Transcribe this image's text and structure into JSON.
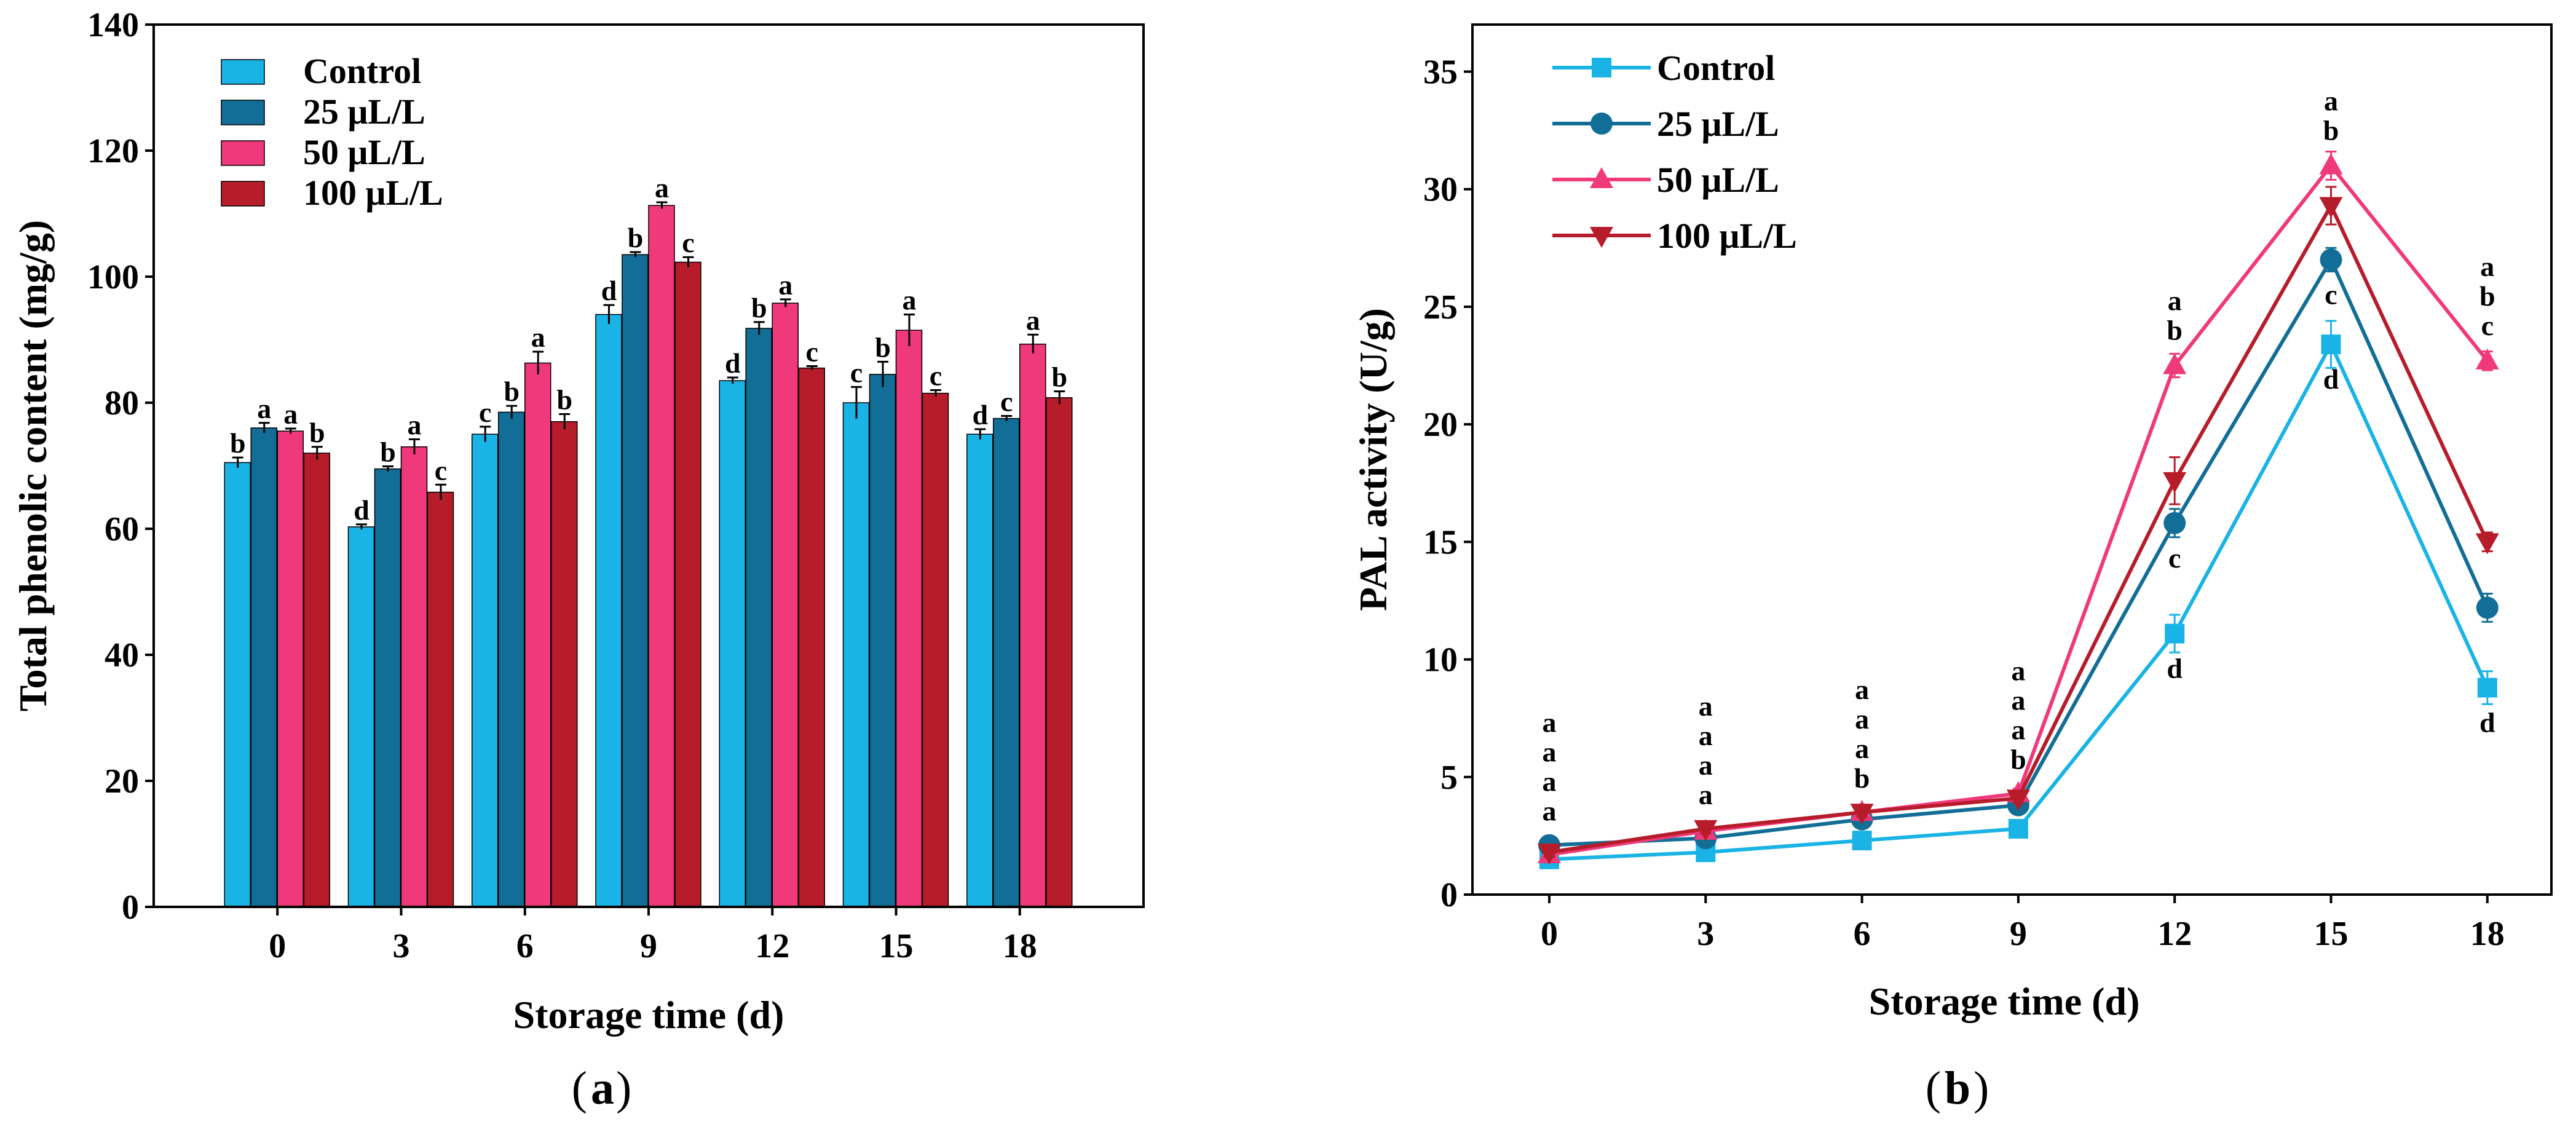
{
  "chart_data": [
    {
      "type": "bar",
      "panel_label": "a",
      "xlabel": "Storage time (d)",
      "ylabel": "Total phenolic content (mg/g)",
      "ylim": [
        0,
        140
      ],
      "yticks": [
        0,
        20,
        40,
        60,
        80,
        100,
        120,
        140
      ],
      "categories": [
        "0",
        "3",
        "6",
        "9",
        "12",
        "15",
        "18"
      ],
      "legend_position": "top-left",
      "series": [
        {
          "name": "Control",
          "color": "#1ab3e6",
          "values": [
            70.5,
            60.3,
            75.0,
            94.0,
            83.5,
            80.0,
            75.0
          ],
          "errors": [
            0.8,
            0.4,
            1.2,
            1.5,
            0.5,
            2.5,
            0.8
          ],
          "letters": [
            "b",
            "d",
            "c",
            "d",
            "d",
            "c",
            "d"
          ]
        },
        {
          "name": "25 μL/L",
          "color": "#126e96",
          "values": [
            76.0,
            69.5,
            78.5,
            103.5,
            91.8,
            84.5,
            77.5
          ],
          "errors": [
            0.8,
            0.4,
            1.0,
            0.4,
            1.0,
            2.0,
            0.4
          ],
          "letters": [
            "a",
            "b",
            "b",
            "b",
            "b",
            "b",
            "c"
          ]
        },
        {
          "name": "50 μL/L",
          "color": "#f0397a",
          "values": [
            75.5,
            73.0,
            86.3,
            111.3,
            95.8,
            91.5,
            89.3
          ],
          "errors": [
            0.4,
            1.2,
            1.8,
            0.5,
            0.6,
            2.5,
            1.5
          ],
          "letters": [
            "a",
            "a",
            "a",
            "a",
            "a",
            "a",
            "a"
          ]
        },
        {
          "name": "100 μL/L",
          "color": "#b71c2b",
          "values": [
            72.0,
            65.8,
            77.0,
            102.3,
            85.5,
            81.5,
            80.8
          ],
          "errors": [
            1.0,
            1.2,
            1.2,
            0.8,
            0.3,
            0.5,
            1.0
          ],
          "letters": [
            "b",
            "c",
            "b",
            "c",
            "c",
            "c",
            "b"
          ]
        }
      ]
    },
    {
      "type": "line",
      "panel_label": "b",
      "xlabel": "Storage time (d)",
      "ylabel": "PAL activity (U/g)",
      "ylim": [
        0,
        37
      ],
      "yticks": [
        0,
        5,
        10,
        15,
        20,
        25,
        30,
        35
      ],
      "x": [
        0,
        3,
        6,
        9,
        12,
        15,
        18
      ],
      "legend_position": "top-left",
      "series": [
        {
          "name": "Control",
          "color": "#1ab3e6",
          "marker": "square",
          "values": [
            1.5,
            1.8,
            2.3,
            2.8,
            11.1,
            23.4,
            8.8
          ],
          "errors": [
            0.2,
            0.2,
            0.2,
            0.2,
            0.8,
            1.0,
            0.7
          ]
        },
        {
          "name": "25 μL/L",
          "color": "#126e96",
          "marker": "circle",
          "values": [
            2.1,
            2.4,
            3.2,
            3.8,
            15.8,
            27.0,
            12.2
          ],
          "errors": [
            0.2,
            0.2,
            0.2,
            0.2,
            0.6,
            0.5,
            0.6
          ]
        },
        {
          "name": "50 μL/L",
          "color": "#f0397a",
          "marker": "triangle-up",
          "values": [
            1.7,
            2.7,
            3.5,
            4.3,
            22.5,
            31.0,
            22.7
          ],
          "errors": [
            0.2,
            0.2,
            0.2,
            0.2,
            0.5,
            0.6,
            0.4
          ]
        },
        {
          "name": "100 μL/L",
          "color": "#b71c2b",
          "marker": "triangle-down",
          "values": [
            1.8,
            2.8,
            3.5,
            4.1,
            17.6,
            29.3,
            15.0
          ],
          "errors": [
            0.2,
            0.2,
            0.2,
            0.2,
            1.0,
            0.8,
            0.4
          ]
        }
      ],
      "annotations": [
        {
          "x": 0,
          "letters": [
            "a",
            "a",
            "a",
            "a"
          ]
        },
        {
          "x": 3,
          "letters": [
            "a",
            "a",
            "a",
            "a"
          ]
        },
        {
          "x": 6,
          "letters": [
            "a",
            "a",
            "a",
            "b"
          ]
        },
        {
          "x": 9,
          "letters": [
            "a",
            "a",
            "a",
            "b"
          ]
        },
        {
          "x": 12,
          "above": [
            "a",
            "b"
          ],
          "below": [
            "c",
            "d"
          ]
        },
        {
          "x": 15,
          "above": [
            "a",
            "b"
          ],
          "below": [
            "c",
            "d"
          ]
        },
        {
          "x": 18,
          "above": [
            "a",
            "b",
            "c"
          ],
          "below": [
            "d"
          ]
        }
      ]
    }
  ]
}
